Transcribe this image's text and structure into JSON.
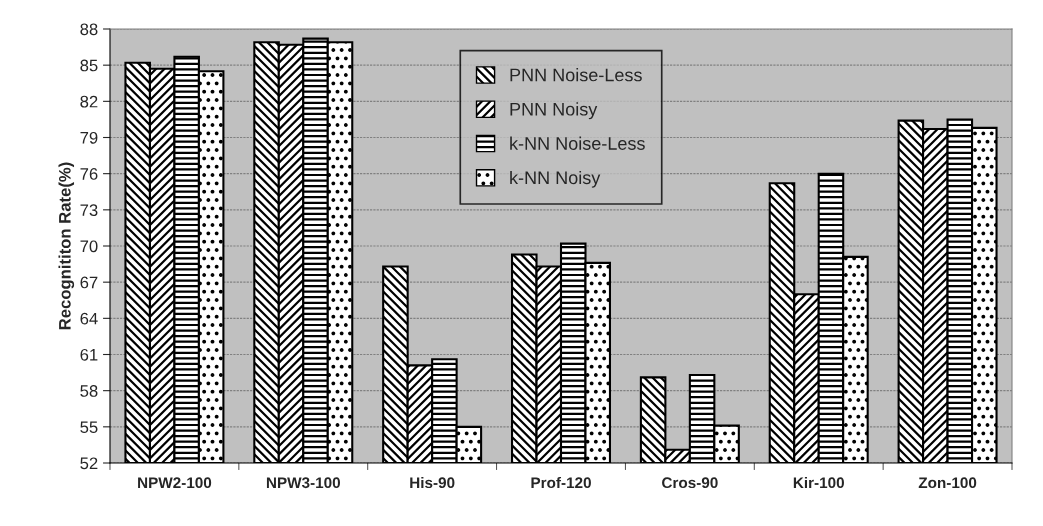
{
  "chart_data": {
    "type": "bar",
    "ylabel": "Recognititon Rate(%)",
    "categories": [
      "NPW2-100",
      "NPW3-100",
      "His-90",
      "Prof-120",
      "Cros-90",
      "Kir-100",
      "Zon-100"
    ],
    "series": [
      {
        "name": "PNN Noise-Less",
        "values": [
          85.2,
          86.9,
          68.3,
          69.3,
          59.1,
          75.2,
          80.4
        ]
      },
      {
        "name": "PNN Noisy",
        "values": [
          84.7,
          86.7,
          60.1,
          68.3,
          53.1,
          66.0,
          79.7
        ]
      },
      {
        "name": "k-NN Noise-Less",
        "values": [
          85.7,
          87.2,
          60.6,
          70.2,
          59.3,
          76.0,
          80.5
        ]
      },
      {
        "name": "k-NN Noisy",
        "values": [
          84.5,
          86.9,
          55.0,
          68.6,
          55.1,
          69.1,
          79.8
        ]
      }
    ],
    "ylim": [
      52,
      88
    ],
    "yticks": [
      52,
      55,
      58,
      61,
      64,
      67,
      70,
      73,
      76,
      79,
      82,
      85,
      88
    ],
    "grid": "y",
    "legend": "top"
  }
}
